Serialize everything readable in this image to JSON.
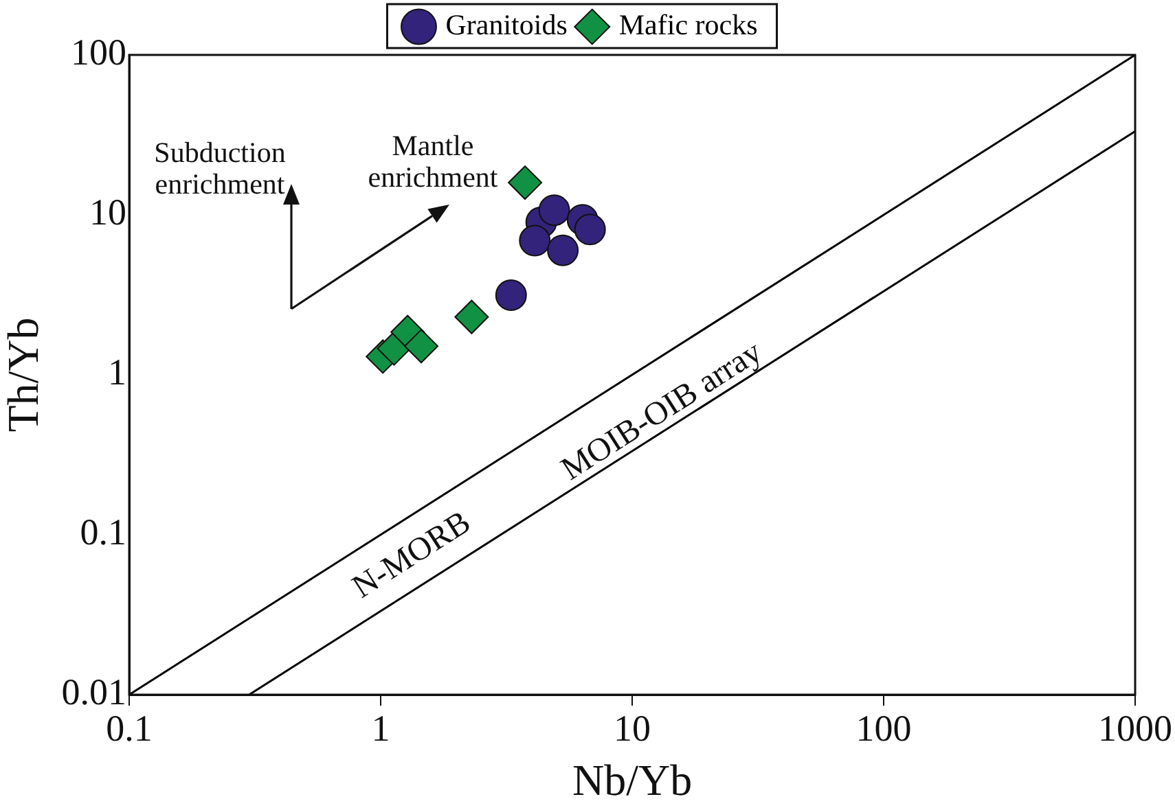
{
  "chart_data": {
    "type": "scatter",
    "xlabel": "Nb/Yb",
    "ylabel": "Th/Yb",
    "log": "xy",
    "xlim": [
      0.1,
      1000
    ],
    "ylim": [
      0.01,
      100
    ],
    "xticks": [
      0.1,
      1,
      10,
      100,
      1000
    ],
    "yticks": [
      0.01,
      0.1,
      1,
      10,
      100
    ],
    "grid": false,
    "legend": "top",
    "series": [
      {
        "name": "Granitoids",
        "color": "#33237a",
        "marker": "circle",
        "x": [
          3.3,
          4.35,
          4.9,
          6.35,
          6.8,
          4.1,
          5.3
        ],
        "values": [
          3.15,
          9.0,
          10.7,
          9.3,
          8.1,
          6.9,
          6.0
        ]
      },
      {
        "name": "Mafic rocks",
        "color": "#119143",
        "marker": "diamond",
        "x": [
          3.75,
          2.3,
          1.02,
          1.13,
          1.28,
          1.45
        ],
        "values": [
          15.9,
          2.3,
          1.3,
          1.46,
          1.85,
          1.51
        ]
      },
      {
        "type": "line",
        "color": "#000000",
        "marker": "none",
        "x": [
          0.1,
          1000
        ],
        "values": [
          0.01,
          100
        ]
      },
      {
        "type": "line",
        "color": "#000000",
        "marker": "none",
        "x": [
          0.3,
          1000
        ],
        "values": [
          0.01,
          33.3
        ]
      }
    ],
    "annotations": [
      "Subduction enrichment",
      "Mantle enrichment",
      "N-MORB",
      "MOIB-OIB array"
    ]
  }
}
